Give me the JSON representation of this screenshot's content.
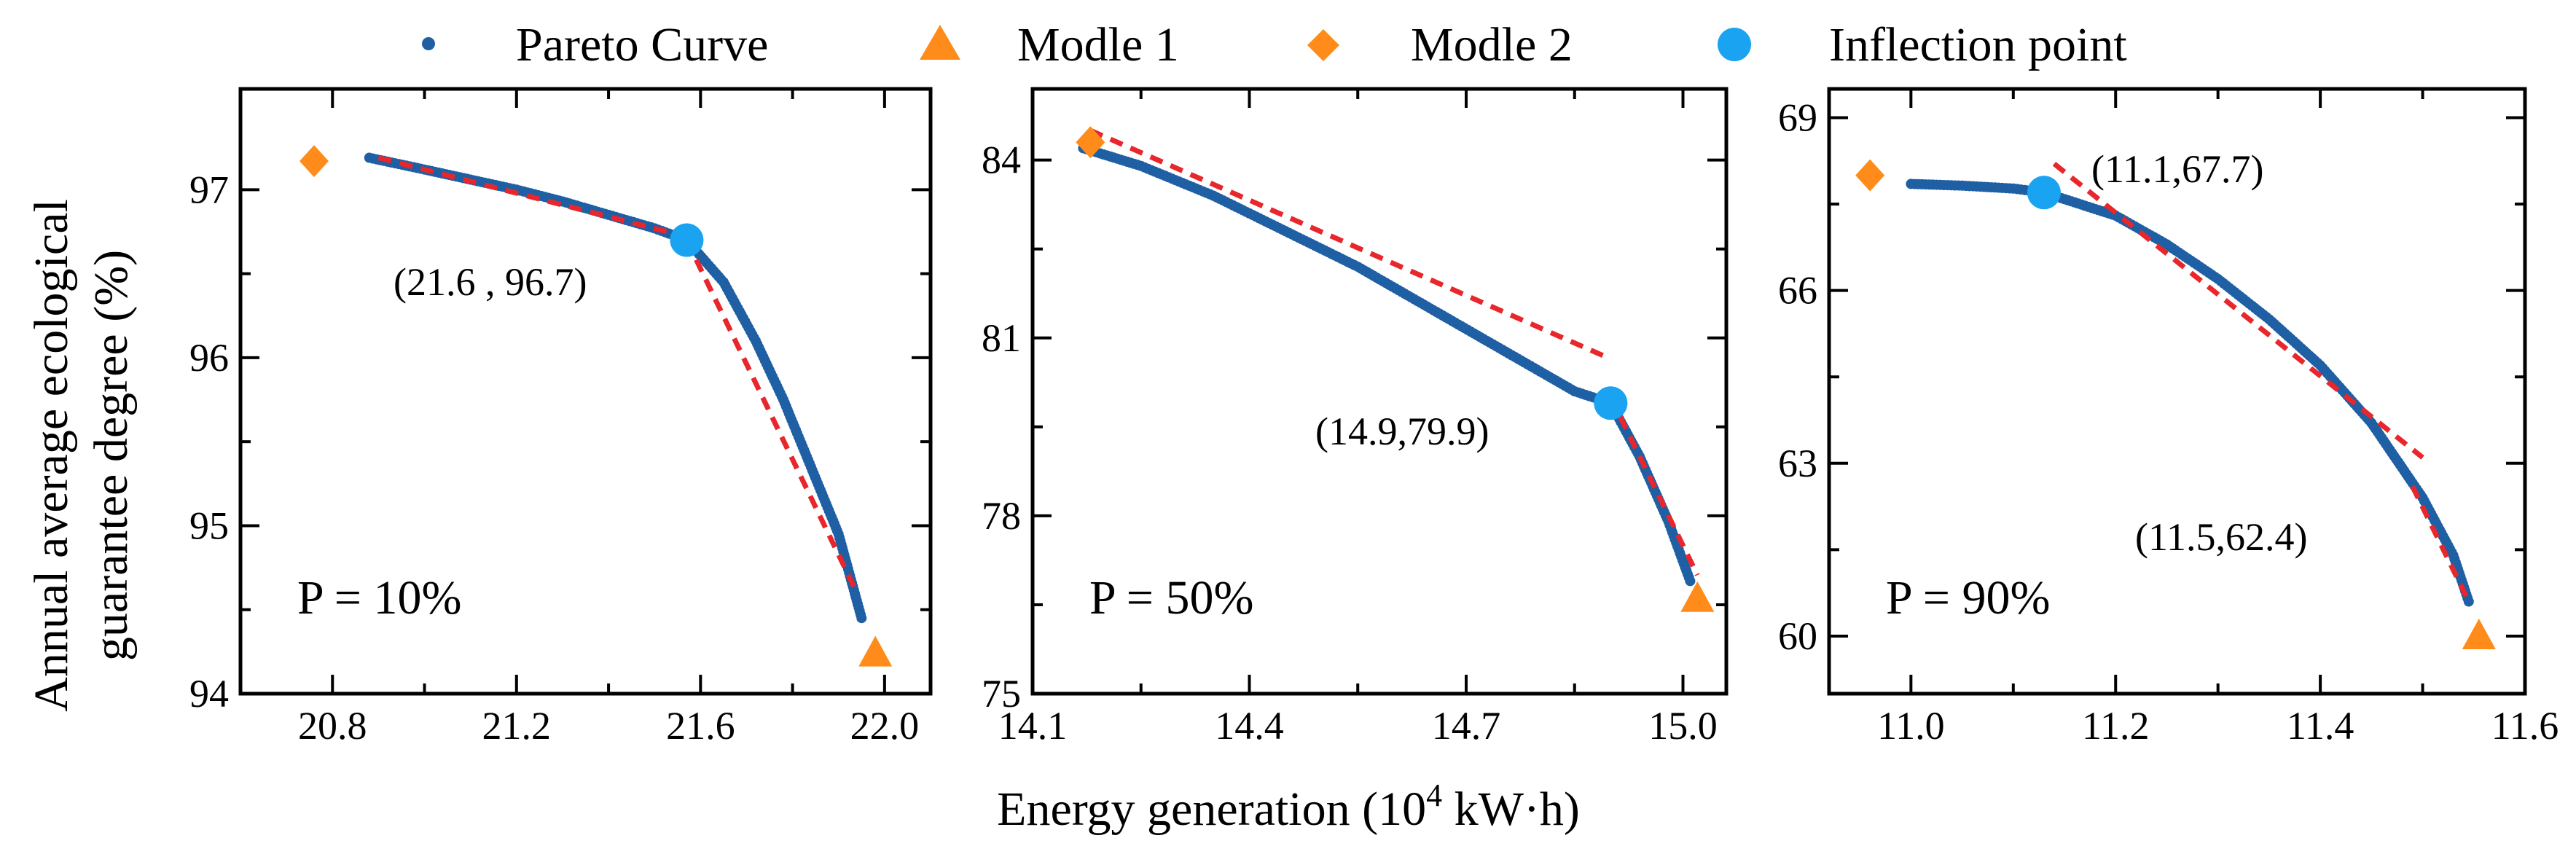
{
  "legend": [
    {
      "key": "pareto",
      "label": "Pareto Curve",
      "marker": "small-dot",
      "color": "#1f5fa3"
    },
    {
      "key": "modle1",
      "label": "Modle 1",
      "marker": "triangle",
      "color": "#ff8c1a"
    },
    {
      "key": "modle2",
      "label": "Modle 2",
      "marker": "diamond",
      "color": "#ff8c1a"
    },
    {
      "key": "inflection",
      "label": "Inflection point",
      "marker": "large-dot",
      "color": "#1aa3f0"
    }
  ],
  "xlabel_main": "Energy generation (10",
  "xlabel_sup": "4",
  "xlabel_tail": " kW·h)",
  "ylabel_line1": "Annual average ecological",
  "ylabel_line2": "guarantee degree (%)",
  "colors": {
    "pareto": "#1f5fa3",
    "model": "#ff8c1a",
    "inflection": "#1aa3f0",
    "fit": "#e8262b"
  },
  "chart_data": [
    {
      "type": "scatter",
      "panel_label": "P = 10%",
      "xlim": [
        20.6,
        22.1
      ],
      "ylim": [
        94,
        97.6
      ],
      "xticks": [
        20.8,
        21.2,
        21.6,
        22.0
      ],
      "xtick_labels": [
        "20.8",
        "21.2",
        "21.6",
        "22.0"
      ],
      "yticks": [
        94,
        95,
        96,
        97
      ],
      "ytick_labels": [
        "94",
        "95",
        "96",
        "97"
      ],
      "pareto_curve": [
        [
          20.88,
          97.19
        ],
        [
          21.0,
          97.12
        ],
        [
          21.1,
          97.06
        ],
        [
          21.2,
          97.0
        ],
        [
          21.3,
          96.93
        ],
        [
          21.4,
          96.85
        ],
        [
          21.5,
          96.77
        ],
        [
          21.57,
          96.7
        ],
        [
          21.65,
          96.45
        ],
        [
          21.72,
          96.1
        ],
        [
          21.78,
          95.75
        ],
        [
          21.84,
          95.35
        ],
        [
          21.9,
          94.95
        ],
        [
          21.95,
          94.45
        ]
      ],
      "fit_lines": [
        [
          [
            20.9,
            97.19
          ],
          [
            21.57,
            96.72
          ]
        ],
        [
          [
            21.57,
            96.7
          ],
          [
            21.94,
            94.6
          ]
        ]
      ],
      "modle1": [
        21.98,
        94.24
      ],
      "modle2": [
        20.76,
        97.17
      ],
      "inflection": [
        21.57,
        96.7
      ],
      "annotation": "(21.6 , 96.7)"
    },
    {
      "type": "scatter",
      "panel_label": "P = 50%",
      "xlim": [
        14.1,
        15.06
      ],
      "ylim": [
        75,
        85.2
      ],
      "xticks": [
        14.1,
        14.4,
        14.7,
        15.0
      ],
      "xtick_labels": [
        "14.1",
        "14.4",
        "14.7",
        "15.0"
      ],
      "yticks": [
        75,
        78,
        81,
        84
      ],
      "ytick_labels": [
        "75",
        "78",
        "81",
        "84"
      ],
      "pareto_curve": [
        [
          14.17,
          84.2
        ],
        [
          14.25,
          83.9
        ],
        [
          14.35,
          83.4
        ],
        [
          14.45,
          82.8
        ],
        [
          14.55,
          82.2
        ],
        [
          14.65,
          81.5
        ],
        [
          14.75,
          80.8
        ],
        [
          14.85,
          80.1
        ],
        [
          14.9,
          79.9
        ],
        [
          14.94,
          79.0
        ],
        [
          14.98,
          77.9
        ],
        [
          15.01,
          76.9
        ]
      ],
      "fit_lines": [
        [
          [
            14.18,
            84.5
          ],
          [
            14.89,
            80.7
          ]
        ],
        [
          [
            14.9,
            80.0
          ],
          [
            15.02,
            77.0
          ]
        ]
      ],
      "modle1": [
        15.02,
        76.6
      ],
      "modle2": [
        14.18,
        84.3
      ],
      "inflection": [
        14.9,
        79.9
      ],
      "annotation": "(14.9,79.9)"
    },
    {
      "type": "scatter",
      "panel_label": "P = 90%",
      "xlim": [
        10.92,
        11.6
      ],
      "ylim": [
        59,
        69.5
      ],
      "xticks": [
        11.0,
        11.2,
        11.4,
        11.6
      ],
      "xtick_labels": [
        "11.0",
        "11.2",
        "11.4",
        "11.6"
      ],
      "yticks": [
        60,
        63,
        66,
        69
      ],
      "ytick_labels": [
        "60",
        "63",
        "66",
        "69"
      ],
      "pareto_curve": [
        [
          11.0,
          67.85
        ],
        [
          11.05,
          67.82
        ],
        [
          11.1,
          67.77
        ],
        [
          11.13,
          67.7
        ],
        [
          11.2,
          67.3
        ],
        [
          11.25,
          66.8
        ],
        [
          11.3,
          66.2
        ],
        [
          11.35,
          65.5
        ],
        [
          11.4,
          64.7
        ],
        [
          11.45,
          63.7
        ],
        [
          11.5,
          62.4
        ],
        [
          11.53,
          61.4
        ],
        [
          11.545,
          60.6
        ]
      ],
      "fit_lines": [
        [
          [
            11.14,
            68.2
          ],
          [
            11.5,
            63.1
          ]
        ],
        [
          [
            11.49,
            62.6
          ],
          [
            11.545,
            60.6
          ]
        ]
      ],
      "modle1": [
        11.555,
        60.0
      ],
      "modle2": [
        10.96,
        68.0
      ],
      "inflection": [
        11.13,
        67.7
      ],
      "annotation": "(11.1,67.7)",
      "annotation2": "(11.5,62.4)"
    }
  ]
}
